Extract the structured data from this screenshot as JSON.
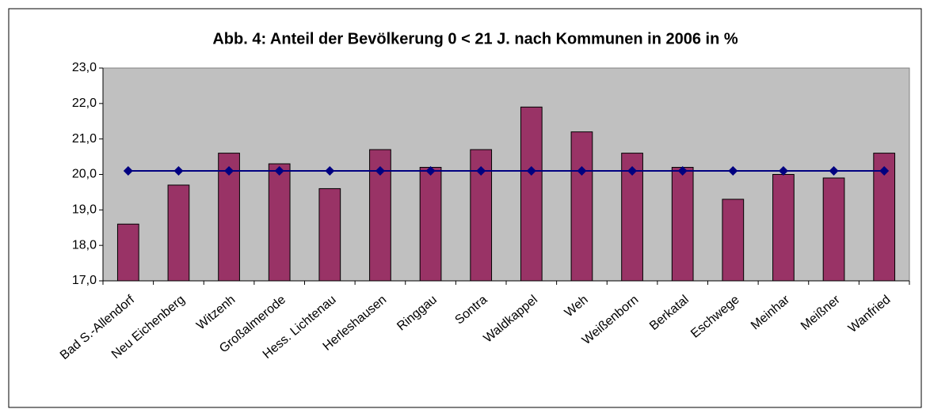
{
  "chart_data": {
    "type": "bar_line",
    "title": "Abb. 4: Anteil der Bevölkerung 0 < 21 J.  nach Kommunen in 2006 in %",
    "categories": [
      "Bad S.-Allendorf",
      "Neu Eichenberg",
      "Witzenh",
      "Großalmerode",
      "Hess. Lichtenau",
      "Herleshausen",
      "Ringgau",
      "Sontra",
      "Waldkappel",
      "Weh",
      "Weißenborn",
      "Berkatal",
      "Eschwege",
      "Meinhar",
      "Meißner",
      "Wanfried"
    ],
    "series": [
      {
        "type": "bar",
        "color": "#993366",
        "values": [
          18.6,
          19.7,
          20.6,
          20.3,
          19.6,
          20.7,
          20.2,
          20.7,
          21.9,
          21.2,
          20.6,
          20.2,
          19.3,
          20.0,
          19.9,
          20.6
        ]
      },
      {
        "type": "line",
        "color": "#000080",
        "values": [
          20.1,
          20.1,
          20.1,
          20.1,
          20.1,
          20.1,
          20.1,
          20.1,
          20.1,
          20.1,
          20.1,
          20.1,
          20.1,
          20.1,
          20.1,
          20.1
        ]
      }
    ],
    "ylim": [
      17,
      23
    ],
    "yticks": [
      {
        "value": 17,
        "label": "17,0"
      },
      {
        "value": 18,
        "label": "18,0"
      },
      {
        "value": 19,
        "label": "19,0"
      },
      {
        "value": 20,
        "label": "20,0"
      },
      {
        "value": 21,
        "label": "21,0"
      },
      {
        "value": 22,
        "label": "22,0"
      },
      {
        "value": 23,
        "label": "23,0"
      }
    ],
    "plot_background": "#c0c0c0"
  }
}
